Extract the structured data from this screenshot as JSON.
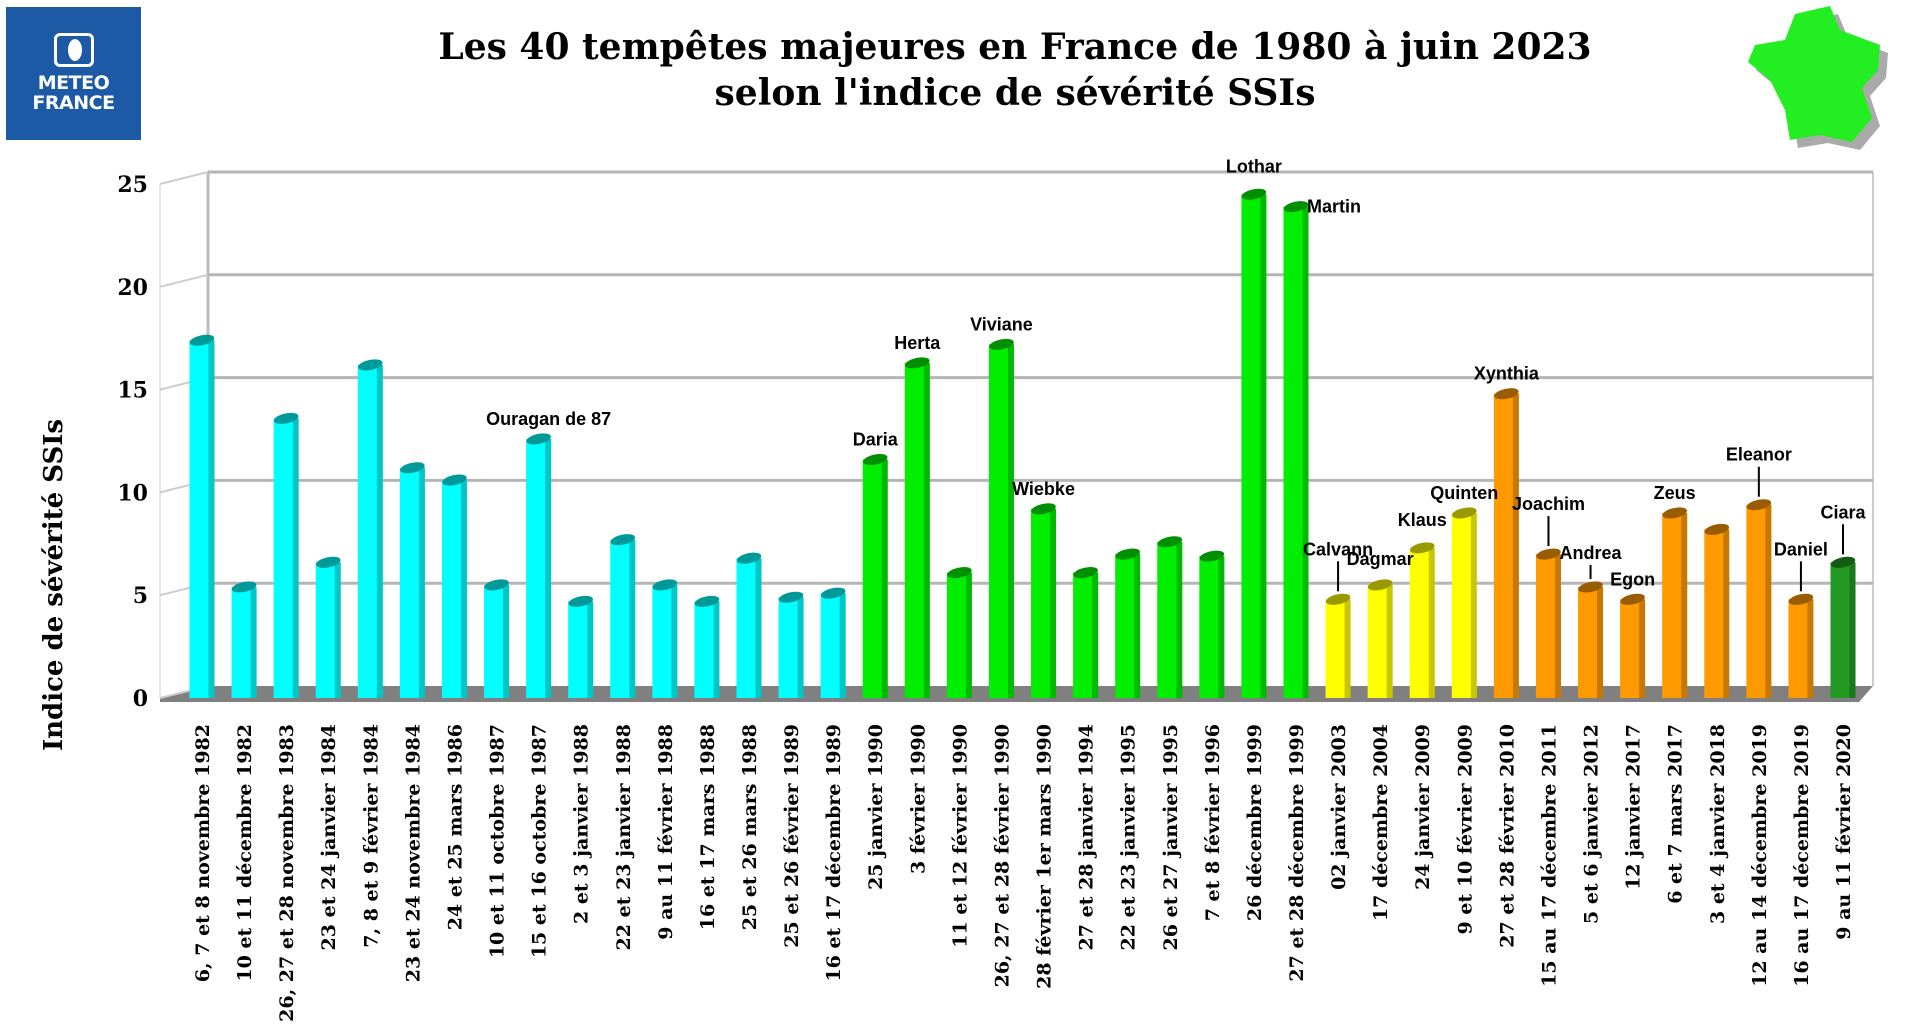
{
  "logo": {
    "line1": "METEO",
    "line2": "FRANCE"
  },
  "chart_data": {
    "type": "bar",
    "title": [
      "Les 40 tempêtes majeures en France de 1980 à juin 2023",
      "selon l'indice de sévérité SSIs"
    ],
    "xlabel": "",
    "ylabel": "Indice de sévérité SSIs",
    "ylim": [
      0,
      25
    ],
    "yticks": [
      0,
      5,
      10,
      15,
      20,
      25
    ],
    "grid": true,
    "categories": [
      "6, 7 et 8 novembre 1982",
      "10 et 11 décembre 1982",
      "26, 27 et 28 novembre 1983",
      "23 et 24 janvier 1984",
      "7, 8 et 9 février 1984",
      "23 et 24 novembre 1984",
      "24 et 25 mars 1986",
      "10 et 11 octobre 1987",
      "15 et 16 octobre 1987",
      "2 et 3 janvier 1988",
      "22 et 23 janvier 1988",
      "9 au 11 février 1988",
      "16 et 17 mars 1988",
      "25 et 26 mars 1988",
      "25 et 26 février 1989",
      "16 et 17 décembre 1989",
      "25 janvier 1990",
      "3 février 1990",
      "11 et 12 février 1990",
      "26, 27 et 28 février 1990",
      "28 février 1er mars 1990",
      "27 et 28 janvier 1994",
      "22 et 23 janvier 1995",
      "26 et 27 janvier 1995",
      "7 et 8 février 1996",
      "26 décembre 1999",
      "27 et 28 décembre 1999",
      "02 janvier 2003",
      "17 décembre 2004",
      "24 janvier 2009",
      "9 et 10 février 2009",
      "27 et 28 février 2010",
      "15 au 17 décembre 2011",
      "5 et 6 janvier 2012",
      "12 janvier 2017",
      "6 et 7 mars 2017",
      "3 et 4 janvier 2018",
      "12 au 14 décembre 2019",
      "16 au 17 décembre 2019",
      "9 au 11 février 2020"
    ],
    "values": [
      17.4,
      5.4,
      13.6,
      6.6,
      16.2,
      11.2,
      10.6,
      5.5,
      12.6,
      4.7,
      7.7,
      5.5,
      4.7,
      6.8,
      4.9,
      5.1,
      11.6,
      16.3,
      6.1,
      17.2,
      9.2,
      6.1,
      7.0,
      7.6,
      6.9,
      24.5,
      23.9,
      4.8,
      5.5,
      7.3,
      9.0,
      14.8,
      7.0,
      5.4,
      4.8,
      9.0,
      8.2,
      9.4,
      4.8,
      6.6
    ],
    "names": [
      "",
      "",
      "",
      "",
      "",
      "",
      "",
      "",
      "Ouragan de 87",
      "",
      "",
      "",
      "",
      "",
      "",
      "",
      "Daria",
      "Herta",
      "",
      "Viviane",
      "Wiebke",
      "",
      "",
      "",
      "",
      "Lothar",
      "Martin",
      "Calvann",
      "Dagmar",
      "Klaus",
      "Quinten",
      "Xynthia",
      "Joachim",
      "Andrea",
      "Egon",
      "Zeus",
      "",
      "Eleanor",
      "Daniel",
      "Ciara"
    ],
    "bar_colors": [
      "#00ffff",
      "#00ffff",
      "#00ffff",
      "#00ffff",
      "#00ffff",
      "#00ffff",
      "#00ffff",
      "#00ffff",
      "#00ffff",
      "#00ffff",
      "#00ffff",
      "#00ffff",
      "#00ffff",
      "#00ffff",
      "#00ffff",
      "#00ffff",
      "#00ee00",
      "#00ee00",
      "#00ee00",
      "#00ee00",
      "#00ee00",
      "#00ee00",
      "#00ee00",
      "#00ee00",
      "#00ee00",
      "#00ee00",
      "#00ee00",
      "#ffff00",
      "#ffff00",
      "#ffff00",
      "#ffff00",
      "#ff9900",
      "#ff9900",
      "#ff9900",
      "#ff9900",
      "#ff9900",
      "#ff9900",
      "#ff9900",
      "#ff9900",
      "#229922"
    ]
  }
}
